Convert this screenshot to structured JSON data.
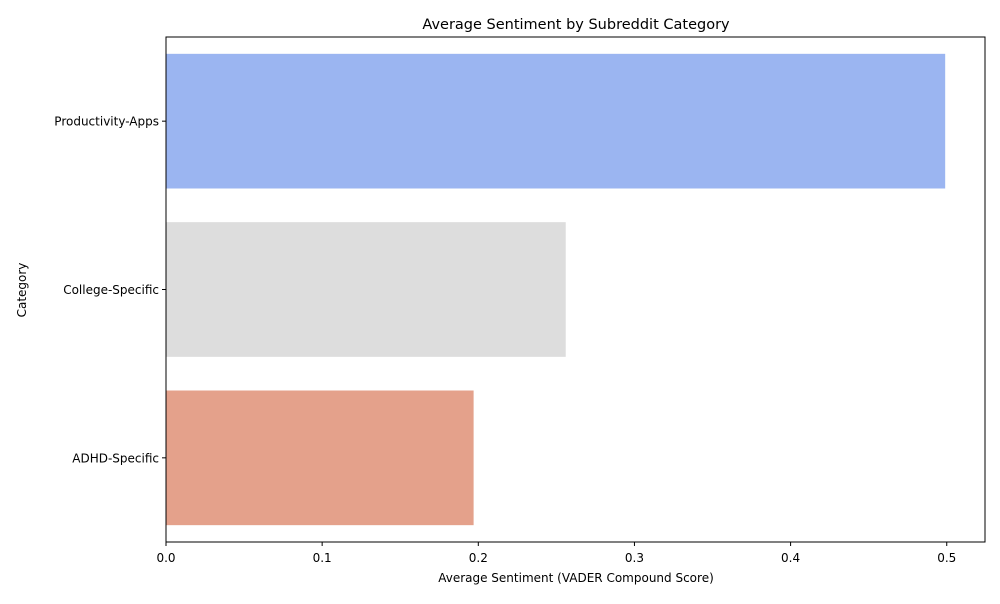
{
  "chart_data": {
    "type": "bar",
    "orientation": "horizontal",
    "title": "Average Sentiment by Subreddit Category",
    "xlabel": "Average Sentiment (VADER Compound Score)",
    "ylabel": "Category",
    "categories": [
      "Productivity-Apps",
      "College-Specific",
      "ADHD-Specific"
    ],
    "values": [
      0.499,
      0.256,
      0.197
    ],
    "colors": [
      "#9bb5f1",
      "#dddddd",
      "#e4a18b"
    ],
    "xlim": [
      0,
      0.5245
    ],
    "xticks": [
      0.0,
      0.1,
      0.2,
      0.3,
      0.4,
      0.5
    ],
    "xtick_labels": [
      "0.0",
      "0.1",
      "0.2",
      "0.3",
      "0.4",
      "0.5"
    ],
    "grid": false,
    "legend": "none"
  }
}
